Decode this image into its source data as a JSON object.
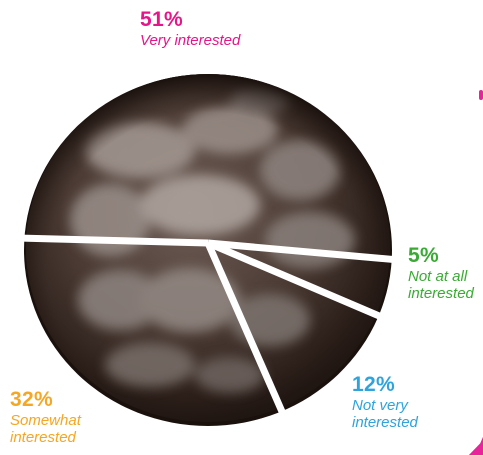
{
  "chart_data": {
    "type": "pie",
    "slices": [
      {
        "pct_label": "51%",
        "label": "Very interested",
        "value": 51,
        "color": "#e6168a"
      },
      {
        "pct_label": "5%",
        "label": "Not at all interested",
        "value": 5,
        "color": "#3aaa35"
      },
      {
        "pct_label": "12%",
        "label": "Not very interested",
        "value": 12,
        "color": "#2ea3dc"
      },
      {
        "pct_label": "32%",
        "label": "Somewhat interested",
        "value": 32,
        "color": "#f5a623"
      }
    ],
    "fill": "chocolate-cookie",
    "separator_color": "#ffffff"
  }
}
